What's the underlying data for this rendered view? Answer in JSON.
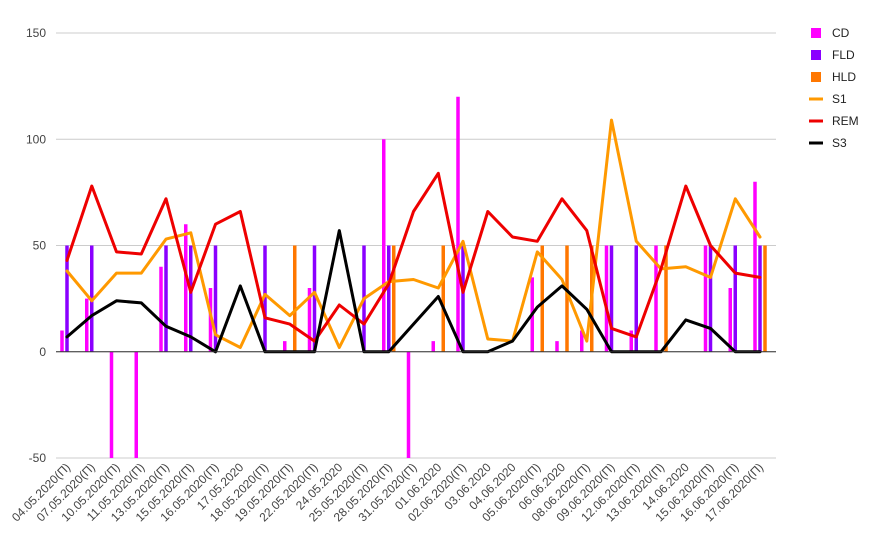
{
  "chart_data": {
    "type": "bar",
    "title": "",
    "xlabel": "",
    "ylabel": "",
    "ylim": [
      -50,
      150
    ],
    "yticks": [
      -50,
      0,
      50,
      100,
      150
    ],
    "grid": true,
    "legend_position": "right",
    "categories": [
      "04.05.2020(П)",
      "07.05.2020(П)",
      "10.05.2020(П)",
      "11.05.2020(П)",
      "13.05.2020(П)",
      "15.05.2020(П)",
      "16.05.2020(П)",
      "17.05.2020",
      "18.05.2020(П)",
      "19.05.2020(П)",
      "22.05.2020(П)",
      "24.05.2020",
      "25.05.2020(П)",
      "28.05.2020(П)",
      "31.05.2020(П)",
      "01.06.2020",
      "02.06.2020(П)",
      "03.06.2020",
      "04.06.2020",
      "05.06.2020(П)",
      "06.06.2020",
      "08.06.2020(П)",
      "09.06.2020(П)",
      "12.06.2020(П)",
      "13.06.2020(П)",
      "14.06.2020",
      "15.06.2020(П)",
      "16.06.2020(П)",
      "17.06.2020(П)"
    ],
    "series": [
      {
        "name": "CD",
        "kind": "bar",
        "color": "#ff00ff",
        "values": [
          10,
          25,
          -50,
          -50,
          40,
          60,
          30,
          0,
          0,
          5,
          30,
          0,
          0,
          100,
          -50,
          5,
          120,
          0,
          0,
          35,
          5,
          10,
          50,
          10,
          50,
          0,
          50,
          30,
          80
        ]
      },
      {
        "name": "FLD",
        "kind": "bar",
        "color": "#8a00ff",
        "values": [
          50,
          50,
          0,
          0,
          50,
          50,
          50,
          0,
          50,
          0,
          50,
          0,
          50,
          50,
          0,
          0,
          50,
          0,
          0,
          0,
          0,
          0,
          50,
          50,
          0,
          0,
          50,
          50,
          50
        ]
      },
      {
        "name": "HLD",
        "kind": "bar",
        "color": "#ff7700",
        "values": [
          0,
          0,
          0,
          0,
          0,
          0,
          0,
          0,
          0,
          50,
          0,
          0,
          0,
          50,
          0,
          50,
          0,
          0,
          0,
          50,
          50,
          50,
          0,
          0,
          50,
          0,
          0,
          0,
          50
        ]
      },
      {
        "name": "S1",
        "kind": "line",
        "color": "#ff9900",
        "values": [
          38,
          24,
          37,
          37,
          53,
          56,
          8,
          2,
          27,
          17,
          28,
          2,
          25,
          33,
          34,
          30,
          52,
          6,
          5,
          47,
          34,
          5,
          109,
          52,
          39,
          40,
          35,
          72,
          54
        ]
      },
      {
        "name": "REM",
        "kind": "line",
        "color": "#ee0000",
        "values": [
          43,
          78,
          47,
          46,
          72,
          28,
          60,
          66,
          16,
          13,
          5,
          22,
          13,
          32,
          66,
          84,
          28,
          66,
          54,
          52,
          72,
          57,
          11,
          7,
          39,
          78,
          50,
          37,
          35
        ]
      },
      {
        "name": "S3",
        "kind": "line",
        "color": "#000000",
        "values": [
          7,
          17,
          24,
          23,
          12,
          7,
          0,
          31,
          0,
          0,
          0,
          57,
          0,
          0,
          13,
          26,
          0,
          0,
          5,
          21,
          31,
          20,
          0,
          0,
          0,
          15,
          11,
          0,
          0
        ]
      }
    ]
  }
}
